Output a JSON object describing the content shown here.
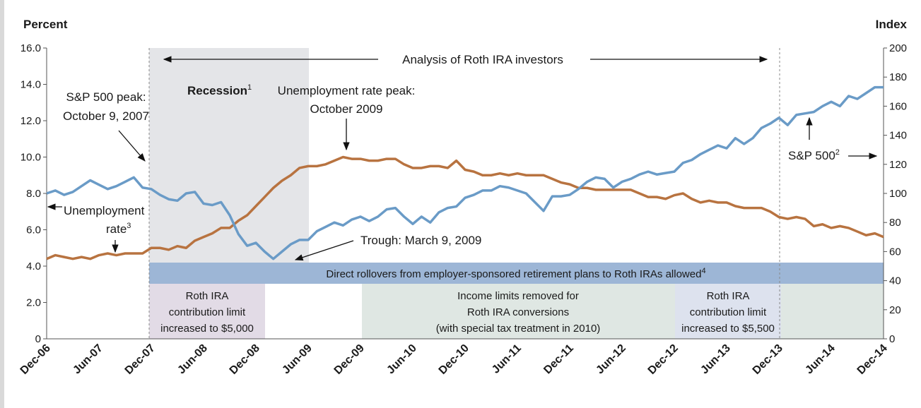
{
  "chart_data": {
    "type": "line",
    "ylabel": "Percent",
    "y2label": "Index",
    "categories": [
      "Dec-06",
      null,
      null,
      null,
      null,
      null,
      "Jun-07",
      null,
      null,
      null,
      null,
      null,
      "Dec-07",
      null,
      null,
      null,
      null,
      null,
      "Jun-08",
      null,
      null,
      null,
      null,
      null,
      "Dec-08",
      null,
      null,
      null,
      null,
      null,
      "Jun-09",
      null,
      null,
      null,
      null,
      null,
      "Dec-09",
      null,
      null,
      null,
      null,
      null,
      "Jun-10",
      null,
      null,
      null,
      null,
      null,
      "Dec-10",
      null,
      null,
      null,
      null,
      null,
      "Jun-11",
      null,
      null,
      null,
      null,
      null,
      "Dec-11",
      null,
      null,
      null,
      null,
      null,
      "Jun-12",
      null,
      null,
      null,
      null,
      null,
      "Dec-12",
      null,
      null,
      null,
      null,
      null,
      "Jun-13",
      null,
      null,
      null,
      null,
      null,
      "Dec-13",
      null,
      null,
      null,
      null,
      null,
      "Jun-14",
      null,
      null,
      null,
      null,
      null,
      "Dec-14"
    ],
    "series": [
      {
        "name": "Unemployment rate",
        "color": "#b87340",
        "values": [
          4.4,
          4.6,
          4.5,
          4.4,
          4.5,
          4.4,
          4.6,
          4.7,
          4.6,
          4.7,
          4.7,
          4.7,
          5.0,
          5.0,
          4.9,
          5.1,
          5.0,
          5.4,
          5.6,
          5.8,
          6.1,
          6.1,
          6.5,
          6.8,
          7.3,
          7.8,
          8.3,
          8.7,
          9.0,
          9.4,
          9.5,
          9.5,
          9.6,
          9.8,
          10.0,
          9.9,
          9.9,
          9.8,
          9.8,
          9.9,
          9.9,
          9.6,
          9.4,
          9.4,
          9.5,
          9.5,
          9.4,
          9.8,
          9.3,
          9.2,
          9.0,
          9.0,
          9.1,
          9.0,
          9.1,
          9.0,
          9.0,
          9.0,
          8.8,
          8.6,
          8.5,
          8.3,
          8.3,
          8.2,
          8.2,
          8.2,
          8.2,
          8.2,
          8.0,
          7.8,
          7.8,
          7.7,
          7.9,
          8.0,
          7.7,
          7.5,
          7.6,
          7.5,
          7.5,
          7.3,
          7.2,
          7.2,
          7.2,
          7.0,
          6.7,
          6.6,
          6.7,
          6.6,
          6.2,
          6.3,
          6.1,
          6.2,
          6.1,
          5.9,
          5.7,
          5.8,
          5.6
        ]
      },
      {
        "name": "S&P 500",
        "color": "#6a9bc7",
        "axis": "y2",
        "values": [
          100,
          102,
          99,
          101,
          105,
          109,
          106,
          103,
          105,
          108,
          111,
          104,
          103,
          99,
          96,
          95,
          100,
          101,
          93,
          92,
          94,
          85,
          72,
          64,
          66,
          60,
          55,
          60,
          65,
          68,
          68,
          74,
          77,
          80,
          78,
          82,
          84,
          81,
          84,
          89,
          90,
          84,
          79,
          84,
          80,
          87,
          90,
          91,
          97,
          99,
          102,
          102,
          105,
          104,
          102,
          100,
          94,
          88,
          98,
          98,
          99,
          103,
          108,
          111,
          110,
          104,
          108,
          110,
          113,
          115,
          113,
          114,
          115,
          121,
          123,
          127,
          130,
          133,
          131,
          138,
          134,
          138,
          145,
          148,
          152,
          147,
          154,
          155,
          156,
          160,
          163,
          160,
          167,
          165,
          169,
          173,
          173
        ]
      }
    ],
    "ylim": [
      0,
      16
    ],
    "yticks": [
      0,
      {
        "value": 2,
        "label": "2.0"
      },
      {
        "value": 4,
        "label": "4.0"
      },
      {
        "value": 6,
        "label": "6.0"
      },
      {
        "value": 8,
        "label": "8.0"
      },
      {
        "value": 10,
        "label": "10.0"
      },
      {
        "value": 12,
        "label": "12.0"
      },
      {
        "value": 14,
        "label": "14.0"
      },
      {
        "value": 16,
        "label": "16.0"
      }
    ],
    "y2lim": [
      0,
      200
    ],
    "y2ticks": [
      0,
      20,
      40,
      60,
      80,
      100,
      120,
      140,
      160,
      180,
      200
    ],
    "annotations": {
      "analysis": "Analysis of Roth IRA investors",
      "recession": {
        "text": "Recession",
        "note": "1"
      },
      "unemp_peak": [
        "Unemployment rate peak:",
        "October 2009"
      ],
      "sp_peak": [
        "S&P 500 peak:",
        "October 9, 2007"
      ],
      "unemp_label": {
        "lines": [
          "Unemployment",
          "rate"
        ],
        "note": "3"
      },
      "trough": "Trough: March 9, 2009",
      "sp_label": {
        "text": "S&P 500",
        "note": "2"
      }
    },
    "periods": {
      "rollover": {
        "text": "Direct rollovers from employer-sponsored retirement plans to Roth IRAs allowed",
        "note": "4"
      },
      "limit_5000": [
        "Roth IRA",
        "contribution limit",
        "increased to $5,000"
      ],
      "income_limits": [
        "Income limits removed for",
        "Roth IRA conversions",
        "(with special tax treatment in 2010)"
      ],
      "limit_5500": [
        "Roth IRA",
        "contribution limit",
        "increased to $5,500"
      ]
    }
  }
}
